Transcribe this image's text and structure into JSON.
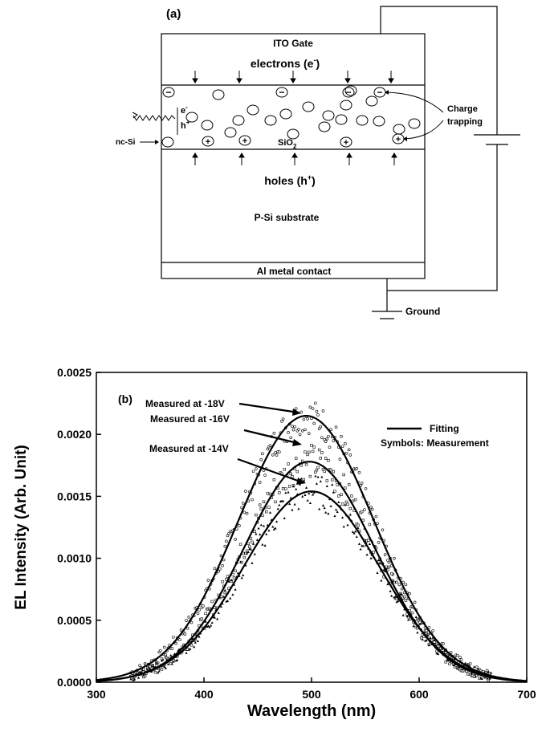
{
  "panel_a": {
    "label": "(a)",
    "ito_gate": "ITO  Gate",
    "electrons": "electrons (e",
    "electrons_sup": "-",
    "electrons_close": ")",
    "holes": "holes (h",
    "holes_sup": "+",
    "holes_close": ")",
    "charge_trapping_1": "Charge",
    "charge_trapping_2": "trapping",
    "nc_si": "nc-Si",
    "sio2": "SiO",
    "sio2_sub": "2",
    "e_label": "e",
    "e_sup": "-",
    "h_label": "h",
    "h_sup": "+",
    "substrate": "P-Si substrate",
    "contact": "Al metal contact",
    "ground": "Ground",
    "minus_sign": "−",
    "plus_sign": "+"
  },
  "chart_data": {
    "type": "line",
    "panel_label": "(b)",
    "xlabel": "Wavelength (nm)",
    "ylabel": "EL Intensity (Arb. Unit)",
    "xlim": [
      300,
      700
    ],
    "ylim": [
      0,
      0.0025
    ],
    "xticks": [
      "300",
      "400",
      "500",
      "600",
      "700"
    ],
    "yticks": [
      "0.0000",
      "0.0005",
      "0.0010",
      "0.0015",
      "0.0020",
      "0.0025"
    ],
    "legend": [
      "Fitting",
      "Symbols: Measurement"
    ],
    "annotations": [
      "Measured at -18V",
      "Measured at -16V",
      "Measured at -14V"
    ],
    "series": [
      {
        "name": "Measured at -18V",
        "peak_wavelength": 495,
        "peak_intensity": 0.00215,
        "width": 63,
        "marker": "circle"
      },
      {
        "name": "Measured at -16V",
        "peak_wavelength": 498,
        "peak_intensity": 0.00178,
        "width": 61,
        "marker": "square"
      },
      {
        "name": "Measured at -14V",
        "peak_wavelength": 500,
        "peak_intensity": 0.00154,
        "width": 63,
        "marker": "triangle"
      }
    ],
    "grid": false
  }
}
